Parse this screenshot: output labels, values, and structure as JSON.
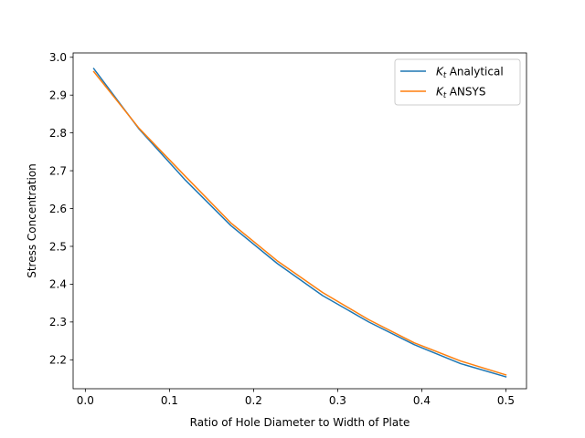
{
  "chart_data": {
    "type": "line",
    "title": "",
    "xlabel": "Ratio of Hole Diameter to Width of Plate",
    "ylabel": "Stress Concentration",
    "xlim": [
      -0.0145,
      0.5245
    ],
    "ylim": [
      2.1235,
      3.0115
    ],
    "xticks": [
      0.0,
      0.1,
      0.2,
      0.3,
      0.4,
      0.5
    ],
    "xtick_labels": [
      "0.0",
      "0.1",
      "0.2",
      "0.3",
      "0.4",
      "0.5"
    ],
    "yticks": [
      2.2,
      2.3,
      2.4,
      2.5,
      2.6,
      2.7,
      2.8,
      2.9,
      3.0
    ],
    "ytick_labels": [
      "2.2",
      "2.3",
      "2.4",
      "2.5",
      "2.6",
      "2.7",
      "2.8",
      "2.9",
      "3.0"
    ],
    "grid": false,
    "legend_position": "top-right",
    "series": [
      {
        "name": "Analytical",
        "name_prefix": "K",
        "name_subscript": "t",
        "color": "#1f77b4",
        "x": [
          0.01,
          0.064,
          0.119,
          0.173,
          0.228,
          0.282,
          0.337,
          0.391,
          0.446,
          0.5
        ],
        "y": [
          2.97,
          2.81,
          2.675,
          2.555,
          2.455,
          2.37,
          2.3,
          2.24,
          2.19,
          2.155
        ]
      },
      {
        "name": "ANSYS",
        "name_prefix": "K",
        "name_subscript": "t",
        "color": "#ff7f0e",
        "x": [
          0.01,
          0.064,
          0.119,
          0.173,
          0.228,
          0.282,
          0.337,
          0.391,
          0.446,
          0.5
        ],
        "y": [
          2.962,
          2.812,
          2.685,
          2.562,
          2.462,
          2.378,
          2.306,
          2.245,
          2.197,
          2.16
        ]
      }
    ]
  }
}
